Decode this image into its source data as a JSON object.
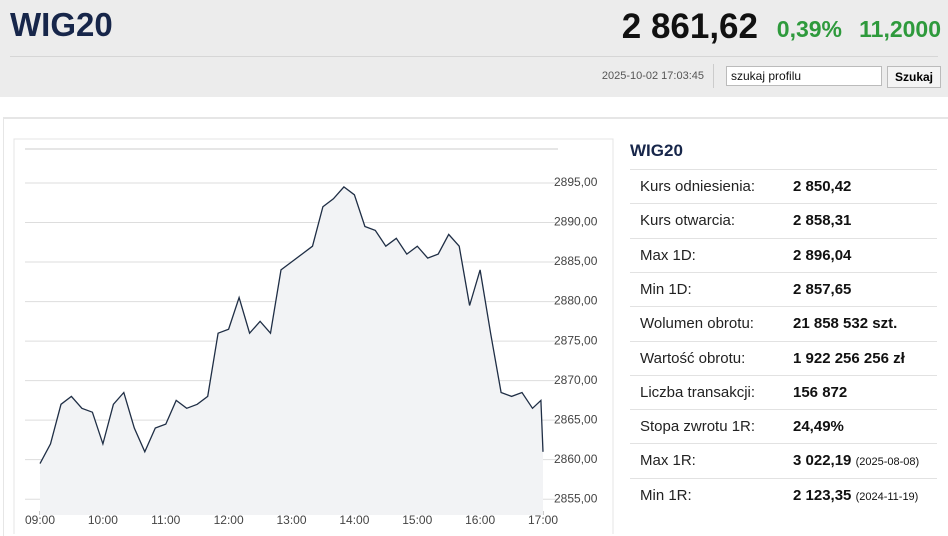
{
  "header": {
    "title": "WIG20",
    "price": "2 861,62",
    "change_pct": "0,39%",
    "change_abs": "11,2000",
    "timestamp": "2025-10-02 17:03:45",
    "search_value": "szukaj profilu",
    "search_button": "Szukaj"
  },
  "chart_data": {
    "type": "line",
    "color": "#1f2e45",
    "fill": "#f2f3f5",
    "grid": true,
    "xlim": [
      "09:00",
      "17:00"
    ],
    "xticks": [
      "09:00",
      "10:00",
      "11:00",
      "12:00",
      "13:00",
      "14:00",
      "15:00",
      "16:00",
      "17:00"
    ],
    "ylim": [
      2853,
      2899.3
    ],
    "yticks": [
      {
        "value": 2855,
        "label": "2855,00"
      },
      {
        "value": 2860,
        "label": "2860,00"
      },
      {
        "value": 2865,
        "label": "2865,00"
      },
      {
        "value": 2870,
        "label": "2870,00"
      },
      {
        "value": 2875,
        "label": "2875,00"
      },
      {
        "value": 2880,
        "label": "2880,00"
      },
      {
        "value": 2885,
        "label": "2885,00"
      },
      {
        "value": 2890,
        "label": "2890,00"
      },
      {
        "value": 2895,
        "label": "2895,00"
      }
    ],
    "x": [
      "09:00",
      "09:10",
      "09:20",
      "09:30",
      "09:40",
      "09:50",
      "10:00",
      "10:10",
      "10:20",
      "10:30",
      "10:40",
      "10:50",
      "11:00",
      "11:10",
      "11:20",
      "11:30",
      "11:40",
      "11:50",
      "12:00",
      "12:10",
      "12:20",
      "12:30",
      "12:40",
      "12:50",
      "13:00",
      "13:10",
      "13:20",
      "13:30",
      "13:40",
      "13:50",
      "14:00",
      "14:10",
      "14:20",
      "14:30",
      "14:40",
      "14:50",
      "15:00",
      "15:10",
      "15:20",
      "15:30",
      "15:40",
      "15:50",
      "16:00",
      "16:10",
      "16:20",
      "16:30",
      "16:40",
      "16:50",
      "16:58",
      "17:00"
    ],
    "values": [
      2859.5,
      2862,
      2867,
      2868,
      2866.5,
      2866,
      2862,
      2867,
      2868.5,
      2864,
      2861,
      2864,
      2864.5,
      2867.5,
      2866.5,
      2867,
      2868,
      2876,
      2876.5,
      2880.5,
      2876,
      2877.5,
      2876,
      2884,
      2885,
      2886,
      2887,
      2892,
      2893,
      2894.5,
      2893.5,
      2889.5,
      2889,
      2887,
      2888,
      2886,
      2887,
      2885.5,
      2886,
      2888.5,
      2887,
      2879.5,
      2884,
      2876,
      2868.5,
      2868,
      2868.5,
      2866.5,
      2867.5,
      2861
    ]
  },
  "table": {
    "title": "WIG20",
    "rows": [
      [
        "Kurs odniesienia:",
        "2 850,42"
      ],
      [
        "Kurs otwarcia:",
        "2 858,31"
      ],
      [
        "Max 1D:",
        "2 896,04"
      ],
      [
        "Min 1D:",
        "2 857,65"
      ],
      [
        "Wolumen obrotu:",
        "21 858 532 szt."
      ],
      [
        "Wartość obrotu:",
        "1 922 256 256 zł"
      ],
      [
        "Liczba transakcji:",
        "156 872"
      ],
      [
        "Stopa zwrotu 1R:",
        "24,49%"
      ],
      [
        "Max 1R:",
        "3 022,19",
        "(2025-08-08)"
      ],
      [
        "Min 1R:",
        "2 123,35",
        "(2024-11-19)"
      ]
    ]
  }
}
